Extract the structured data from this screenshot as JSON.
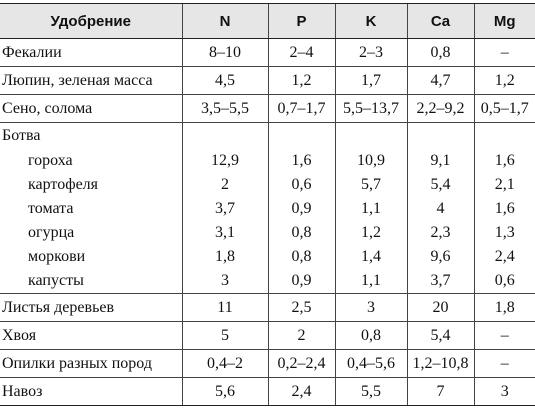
{
  "table": {
    "headers": [
      "Удобрение",
      "N",
      "P",
      "K",
      "Ca",
      "Mg"
    ],
    "rows": [
      {
        "name": "Фекалии",
        "N": "8–10",
        "P": "2–4",
        "K": "2–3",
        "Ca": "0,8",
        "Mg": "–"
      },
      {
        "name": "Люпин, зеленая масса",
        "N": "4,5",
        "P": "1,2",
        "K": "1,7",
        "Ca": "4,7",
        "Mg": "1,2"
      },
      {
        "name": "Сено, солома",
        "N": "3,5–5,5",
        "P": "0,7–1,7",
        "K": "5,5–13,7",
        "Ca": "2,2–9,2",
        "Mg": "0,5–1,7"
      },
      {
        "name": "Ботва"
      },
      {
        "name": "гороха",
        "N": "12,9",
        "P": "1,6",
        "K": "10,9",
        "Ca": "9,1",
        "Mg": "1,6"
      },
      {
        "name": "картофеля",
        "N": "2",
        "P": "0,6",
        "K": "5,7",
        "Ca": "5,4",
        "Mg": "2,1"
      },
      {
        "name": "томата",
        "N": "3,7",
        "P": "0,9",
        "K": "1,1",
        "Ca": "4",
        "Mg": "1,6"
      },
      {
        "name": "огурца",
        "N": "3,1",
        "P": "0,8",
        "K": "1,2",
        "Ca": "2,3",
        "Mg": "1,3"
      },
      {
        "name": "моркови",
        "N": "1,8",
        "P": "0,8",
        "K": "1,4",
        "Ca": "9,6",
        "Mg": "2,4"
      },
      {
        "name": "капусты",
        "N": "3",
        "P": "0,9",
        "K": "1,1",
        "Ca": "3,7",
        "Mg": "0,6"
      },
      {
        "name": "Листья деревьев",
        "N": "11",
        "P": "2,5",
        "K": "3",
        "Ca": "20",
        "Mg": "1,8"
      },
      {
        "name": "Хвоя",
        "N": "5",
        "P": "2",
        "K": "0,8",
        "Ca": "5,4",
        "Mg": "–"
      },
      {
        "name": "Опилки разных пород",
        "N": "0,4–2",
        "P": "0,2–2,4",
        "K": "0,4–5,6",
        "Ca": "1,2–10,8",
        "Mg": "–"
      },
      {
        "name": "Навоз",
        "N": "5,6",
        "P": "2,4",
        "K": "5,5",
        "Ca": "7",
        "Mg": "3"
      }
    ]
  }
}
